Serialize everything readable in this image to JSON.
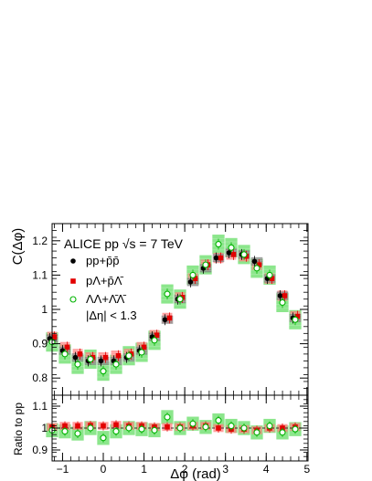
{
  "chart_data": [
    {
      "type": "scatter",
      "panel": "main",
      "ylabel": "C(Δφ)",
      "ylim": [
        0.75,
        1.25
      ],
      "yticks": [
        0.8,
        0.9,
        1.0,
        1.1,
        1.2
      ],
      "ytick_labels": [
        "0.8",
        "0.9",
        "1",
        "1.1",
        "1.2"
      ],
      "annotation_main": "ALICE pp √s = 7 TeV",
      "annotation_cut": "|Δη| < 1.3",
      "legend_position": "top-left",
      "x": [
        -1.2566,
        -0.9425,
        -0.6283,
        -0.3142,
        0.0,
        0.3142,
        0.6283,
        0.9425,
        1.2566,
        1.5708,
        1.885,
        2.1991,
        2.5133,
        2.8274,
        3.1416,
        3.4558,
        3.7699,
        4.0841,
        4.3982,
        4.7124
      ],
      "series": [
        {
          "name": "pp+pp",
          "label_display": "pp+p̄p̄",
          "marker": "filled-circle",
          "color": "#000000",
          "band_color": "#7f7f7f",
          "values": [
            0.915,
            0.88,
            0.86,
            0.85,
            0.85,
            0.85,
            0.86,
            0.88,
            0.92,
            0.97,
            1.03,
            1.08,
            1.12,
            1.15,
            1.165,
            1.16,
            1.14,
            1.09,
            1.04,
            0.975
          ]
        },
        {
          "name": "pΛ+pΛ",
          "label_display": "pΛ+p̄Λ̄",
          "marker": "filled-square",
          "color": "#e20000",
          "band_color": "#ff7f7f",
          "values": [
            0.92,
            0.89,
            0.87,
            0.86,
            0.86,
            0.865,
            0.87,
            0.89,
            0.925,
            0.975,
            1.035,
            1.09,
            1.13,
            1.15,
            1.16,
            1.155,
            1.13,
            1.09,
            1.04,
            0.98
          ]
        },
        {
          "name": "ΛΛ+ΛΛ",
          "label_display": "ΛΛ+Λ̄Λ̄",
          "marker": "open-circle",
          "color": "#00b400",
          "band_color": "#66dd66",
          "values": [
            0.905,
            0.87,
            0.84,
            0.855,
            0.82,
            0.84,
            0.865,
            0.875,
            0.91,
            1.045,
            1.03,
            1.1,
            1.13,
            1.19,
            1.18,
            1.16,
            1.12,
            1.1,
            1.02,
            0.97
          ]
        }
      ]
    },
    {
      "type": "scatter",
      "panel": "ratio",
      "ylabel": "Ratio to pp",
      "xlabel": "Δφ (rad)",
      "xlim": [
        -1.2566,
        5.0265
      ],
      "ylim": [
        0.85,
        1.15
      ],
      "yticks": [
        0.9,
        1.0,
        1.1
      ],
      "ytick_labels": [
        "0.9",
        "1",
        "1.1"
      ],
      "xticks": [
        -1,
        0,
        1,
        2,
        3,
        4,
        5
      ],
      "xtick_labels": [
        "−1",
        "0",
        "1",
        "2",
        "3",
        "4",
        "5"
      ],
      "reference_line": 1.0,
      "series": [
        {
          "name": "pΛ+pΛ / pp",
          "marker": "filled-square",
          "color": "#e20000",
          "values": [
            1.005,
            1.01,
            1.01,
            1.012,
            1.01,
            1.015,
            1.01,
            1.01,
            1.005,
            1.005,
            1.005,
            1.01,
            1.01,
            1.0,
            0.995,
            0.995,
            0.99,
            1.0,
            1.0,
            1.005
          ]
        },
        {
          "name": "ΛΛ+ΛΛ / pp",
          "marker": "open-circle",
          "color": "#00b400",
          "values": [
            0.99,
            0.985,
            0.975,
            1.0,
            0.955,
            0.985,
            1.0,
            0.995,
            0.99,
            1.05,
            1.0,
            1.02,
            1.005,
            1.035,
            1.01,
            1.0,
            0.98,
            1.01,
            0.98,
            0.995
          ]
        }
      ]
    }
  ]
}
